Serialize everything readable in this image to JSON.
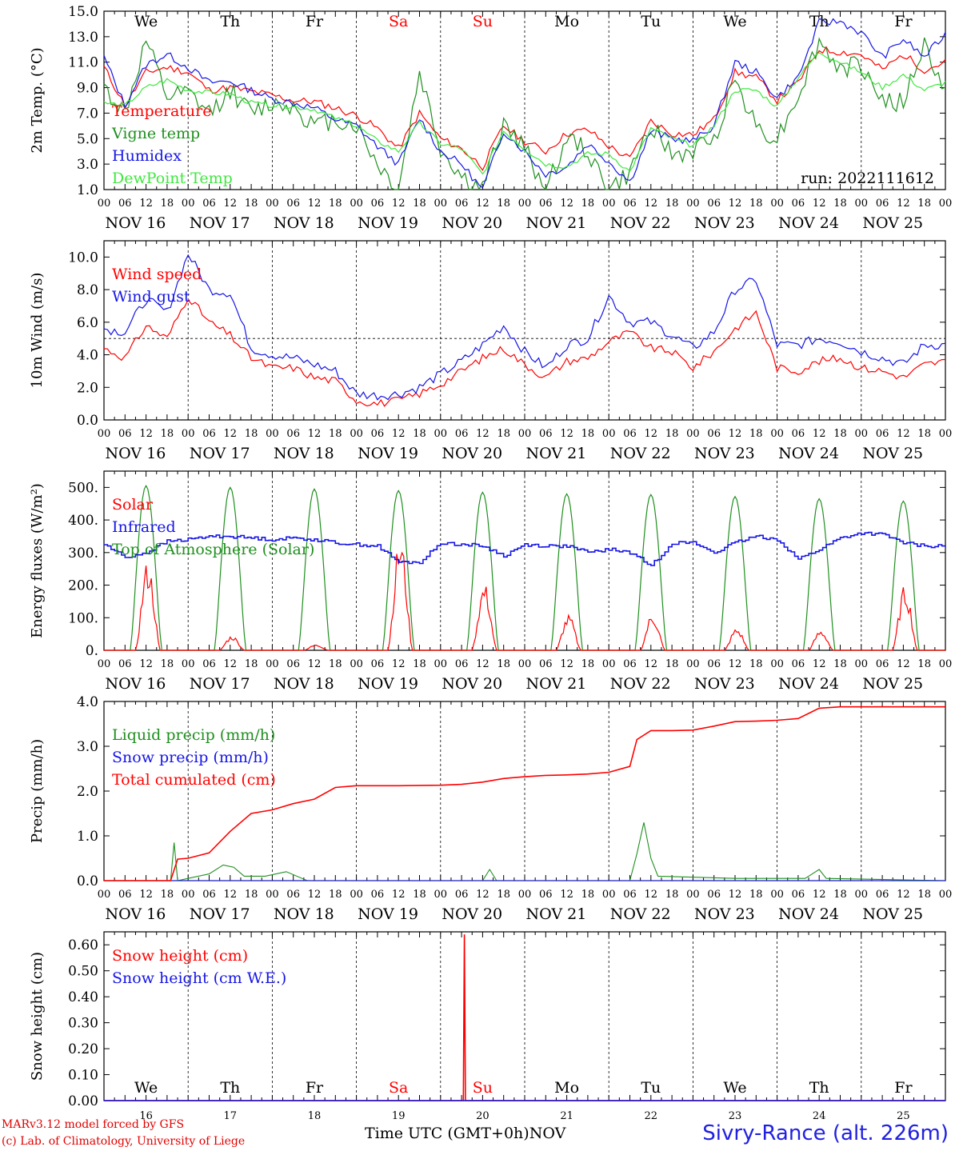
{
  "colors": {
    "red": "#ff0000",
    "darkgreen": "#1f8f1f",
    "blue": "#1515e6",
    "lightgreen": "#3fe83f",
    "weekend": "#ff0000"
  },
  "days": {
    "names": [
      "We",
      "Th",
      "Fr",
      "Sa",
      "Su",
      "Mo",
      "Tu",
      "We",
      "Th",
      "Fr"
    ],
    "weekend": [
      false,
      false,
      false,
      true,
      true,
      false,
      false,
      false,
      false,
      false
    ],
    "dates": [
      "NOV 16",
      "NOV 17",
      "NOV 18",
      "NOV 19",
      "NOV 20",
      "NOV 21",
      "NOV 22",
      "NOV 23",
      "NOV 24",
      "NOV 25"
    ],
    "nums": [
      "16",
      "17",
      "18",
      "19",
      "20",
      "21",
      "22",
      "23",
      "24",
      "25"
    ],
    "hour_ticks": [
      "00",
      "06",
      "12",
      "18"
    ],
    "end_tick": "00"
  },
  "footer": {
    "credit1": "MARv3.12 model forced by GFS",
    "credit2": "(c) Lab. of Climatology, University of Liege",
    "time_label": "Time UTC (GMT+0h)",
    "month": "NOV",
    "station": "Sivry-Rance (alt. 226m)"
  },
  "chart_data": [
    {
      "type": "line",
      "id": "temperature",
      "ylabel": "2m Temp. (°C)",
      "ylim": [
        1.0,
        15.0
      ],
      "yticks": [
        "1.0",
        "3.0",
        "5.0",
        "7.0",
        "9.0",
        "11.0",
        "13.0",
        "15.0"
      ],
      "annotation": "run: 2022111612",
      "x_unit": "hours since NOV 16 00 UTC",
      "series": [
        {
          "name": "Temperature",
          "color_key": "red",
          "x": [
            0,
            6,
            12,
            18,
            24,
            30,
            36,
            42,
            48,
            54,
            60,
            66,
            72,
            78,
            84,
            90,
            96,
            102,
            108,
            114,
            120,
            126,
            132,
            138,
            144,
            150,
            156,
            162,
            168,
            174,
            180,
            186,
            192,
            198,
            204,
            210,
            216,
            222,
            228,
            234,
            240
          ],
          "y": [
            10.6,
            7.6,
            10.2,
            10.6,
            10.2,
            8.8,
            9.0,
            8.7,
            8.4,
            8.0,
            7.9,
            7.4,
            6.8,
            5.8,
            4.2,
            7.0,
            5.0,
            4.2,
            2.8,
            6.0,
            4.8,
            4.0,
            5.4,
            5.7,
            4.4,
            3.4,
            6.4,
            5.4,
            5.3,
            6.5,
            10.2,
            9.8,
            8.0,
            9.4,
            12.0,
            11.8,
            11.6,
            10.4,
            11.6,
            10.4,
            11.0
          ]
        },
        {
          "name": "Vigne temp",
          "color_key": "darkgreen",
          "x": [
            0,
            6,
            12,
            18,
            24,
            30,
            36,
            42,
            48,
            54,
            60,
            66,
            72,
            78,
            84,
            90,
            96,
            102,
            108,
            114,
            120,
            126,
            132,
            138,
            144,
            150,
            156,
            162,
            168,
            174,
            180,
            186,
            192,
            198,
            204,
            210,
            216,
            222,
            228,
            234,
            240
          ],
          "y": [
            9.0,
            7.0,
            12.6,
            8.2,
            8.5,
            7.0,
            8.8,
            7.0,
            7.8,
            7.6,
            6.0,
            6.5,
            6.0,
            3.0,
            1.0,
            10.2,
            4.2,
            2.0,
            1.0,
            6.2,
            4.2,
            1.0,
            5.0,
            4.0,
            1.0,
            2.2,
            6.2,
            3.6,
            4.0,
            5.0,
            9.8,
            6.0,
            5.0,
            8.4,
            12.6,
            10.4,
            10.8,
            8.0,
            7.8,
            12.4,
            8.5
          ]
        },
        {
          "name": "Humidex",
          "color_key": "blue",
          "x": [
            0,
            6,
            12,
            18,
            24,
            30,
            36,
            42,
            48,
            54,
            60,
            66,
            72,
            78,
            84,
            90,
            96,
            102,
            108,
            114,
            120,
            126,
            132,
            138,
            144,
            150,
            156,
            162,
            168,
            174,
            180,
            186,
            192,
            198,
            204,
            210,
            216,
            222,
            228,
            234,
            240
          ],
          "y": [
            11.4,
            7.6,
            10.8,
            11.6,
            10.6,
            9.4,
            9.5,
            8.8,
            8.1,
            7.8,
            7.4,
            6.5,
            6.0,
            4.4,
            3.0,
            6.6,
            4.0,
            3.0,
            1.0,
            5.6,
            4.0,
            2.2,
            2.8,
            4.6,
            3.2,
            1.6,
            5.6,
            5.0,
            4.8,
            6.0,
            11.0,
            10.2,
            8.2,
            9.8,
            14.1,
            14.2,
            13.3,
            11.4,
            12.8,
            11.4,
            13.2
          ]
        },
        {
          "name": "DewPoint Temp",
          "color_key": "lightgreen",
          "x": [
            0,
            6,
            12,
            18,
            24,
            30,
            36,
            42,
            48,
            54,
            60,
            66,
            72,
            78,
            84,
            90,
            96,
            102,
            108,
            114,
            120,
            126,
            132,
            138,
            144,
            150,
            156,
            162,
            168,
            174,
            180,
            186,
            192,
            198,
            204,
            210,
            216,
            222,
            228,
            234,
            240
          ],
          "y": [
            7.8,
            7.6,
            9.0,
            9.6,
            8.8,
            8.6,
            8.5,
            7.8,
            7.6,
            7.5,
            7.3,
            6.6,
            6.0,
            4.8,
            4.0,
            6.2,
            4.6,
            4.2,
            2.2,
            5.6,
            4.2,
            3.0,
            2.8,
            3.8,
            3.8,
            2.4,
            5.8,
            5.0,
            4.4,
            6.0,
            8.8,
            8.8,
            7.5,
            9.8,
            11.8,
            11.0,
            10.2,
            9.0,
            10.0,
            8.8,
            9.4
          ]
        }
      ]
    },
    {
      "type": "line",
      "id": "wind",
      "ylabel": "10m Wind (m/s)",
      "ylim": [
        0.0,
        11.0
      ],
      "yticks": [
        "0.0",
        "2.0",
        "4.0",
        "6.0",
        "8.0",
        "10.0"
      ],
      "ref_line": 5.0,
      "x_unit": "hours since NOV 16 00 UTC",
      "series": [
        {
          "name": "Wind speed",
          "color_key": "red",
          "x": [
            0,
            6,
            12,
            18,
            24,
            30,
            36,
            42,
            48,
            54,
            60,
            66,
            72,
            78,
            84,
            90,
            96,
            102,
            108,
            114,
            120,
            126,
            132,
            138,
            144,
            150,
            156,
            162,
            168,
            174,
            180,
            186,
            192,
            198,
            204,
            210,
            216,
            222,
            228,
            234,
            240
          ],
          "y": [
            4.4,
            3.8,
            5.8,
            5.0,
            7.6,
            6.0,
            5.2,
            3.8,
            3.2,
            3.2,
            2.6,
            2.4,
            1.2,
            1.0,
            1.2,
            1.6,
            2.2,
            3.0,
            3.8,
            4.4,
            3.4,
            2.6,
            3.6,
            3.8,
            4.8,
            5.4,
            4.4,
            4.2,
            3.2,
            4.2,
            5.6,
            6.6,
            3.2,
            3.0,
            3.6,
            3.8,
            3.2,
            3.0,
            2.6,
            3.4,
            3.6
          ]
        },
        {
          "name": "Wind gust",
          "color_key": "blue",
          "x": [
            0,
            6,
            12,
            18,
            24,
            30,
            36,
            42,
            48,
            54,
            60,
            66,
            72,
            78,
            84,
            90,
            96,
            102,
            108,
            114,
            120,
            126,
            132,
            138,
            144,
            150,
            156,
            162,
            168,
            174,
            180,
            186,
            192,
            198,
            204,
            210,
            216,
            222,
            228,
            234,
            240
          ],
          "y": [
            5.6,
            5.4,
            7.4,
            6.6,
            10.2,
            8.0,
            7.8,
            4.4,
            4.0,
            3.8,
            3.4,
            3.0,
            1.6,
            1.5,
            1.6,
            2.0,
            2.8,
            3.6,
            4.6,
            5.8,
            4.2,
            3.2,
            4.6,
            5.0,
            7.6,
            6.0,
            6.0,
            5.2,
            4.4,
            5.4,
            8.0,
            8.6,
            4.6,
            4.6,
            5.0,
            4.8,
            4.2,
            3.8,
            3.4,
            4.6,
            4.6
          ]
        }
      ]
    },
    {
      "type": "line",
      "id": "energy",
      "ylabel": "Energy fluxes (W/m²)",
      "ylim": [
        0,
        550
      ],
      "yticks": [
        "0.",
        "100.",
        "200.",
        "300.",
        "400.",
        "500."
      ],
      "x_unit": "hours since NOV 16 00 UTC",
      "series": [
        {
          "name": "Solar",
          "color_key": "red",
          "day_peaks": [
            240,
            40,
            15,
            305,
            180,
            95,
            100,
            60,
            55,
            175
          ]
        },
        {
          "name": "Infrared",
          "color_key": "blue",
          "x": [
            0,
            6,
            12,
            18,
            24,
            30,
            36,
            42,
            48,
            54,
            60,
            66,
            72,
            78,
            84,
            90,
            96,
            102,
            108,
            114,
            120,
            126,
            132,
            138,
            144,
            150,
            156,
            162,
            168,
            174,
            180,
            186,
            192,
            198,
            204,
            210,
            216,
            222,
            228,
            234,
            240
          ],
          "y": [
            325,
            285,
            300,
            335,
            340,
            350,
            350,
            345,
            340,
            345,
            340,
            330,
            325,
            320,
            270,
            270,
            330,
            325,
            320,
            290,
            325,
            320,
            320,
            300,
            310,
            300,
            260,
            330,
            330,
            300,
            330,
            350,
            340,
            280,
            310,
            345,
            360,
            355,
            330,
            320,
            320
          ]
        },
        {
          "name": "Top of Atmosphere (Solar)",
          "color_key": "darkgreen",
          "day_peaks": [
            505,
            500,
            495,
            490,
            485,
            480,
            478,
            472,
            465,
            458
          ]
        }
      ]
    },
    {
      "type": "line",
      "id": "precip",
      "ylabel": "Precip (mm/h)",
      "ylim": [
        0.0,
        4.0
      ],
      "yticks": [
        "0.0",
        "1.0",
        "2.0",
        "3.0",
        "4.0"
      ],
      "x_unit": "hours since NOV 16 00 UTC",
      "series": [
        {
          "name": "Liquid precip (mm/h)",
          "color_key": "darkgreen",
          "x": [
            0,
            19,
            20,
            21,
            24,
            30,
            34,
            37,
            40,
            46,
            52,
            58,
            108,
            110,
            112,
            150,
            152,
            154,
            156,
            158,
            180,
            200,
            204,
            206,
            240
          ],
          "y": [
            0,
            0,
            0.85,
            0,
            0.05,
            0.15,
            0.35,
            0.3,
            0.1,
            0.1,
            0.2,
            0,
            0,
            0.25,
            0,
            0,
            0.6,
            1.3,
            0.5,
            0.1,
            0.05,
            0.05,
            0.25,
            0.05,
            0
          ]
        },
        {
          "name": "Snow precip (mm/h)",
          "color_key": "blue",
          "x": [
            0,
            240
          ],
          "y": [
            0,
            0
          ]
        },
        {
          "name": "Total cumulated (cm)",
          "color_key": "red",
          "x": [
            0,
            19,
            21,
            24,
            30,
            36,
            42,
            48,
            54,
            60,
            66,
            72,
            84,
            96,
            102,
            108,
            114,
            120,
            126,
            132,
            138,
            144,
            150,
            152,
            156,
            162,
            168,
            174,
            180,
            186,
            192,
            198,
            204,
            210,
            216,
            222,
            228,
            234,
            240
          ],
          "y": [
            0,
            0,
            0.48,
            0.5,
            0.62,
            1.1,
            1.5,
            1.58,
            1.72,
            1.82,
            2.08,
            2.12,
            2.12,
            2.13,
            2.15,
            2.2,
            2.28,
            2.32,
            2.35,
            2.36,
            2.38,
            2.42,
            2.55,
            3.15,
            3.35,
            3.35,
            3.36,
            3.45,
            3.55,
            3.56,
            3.58,
            3.62,
            3.85,
            3.88,
            3.88,
            3.88,
            3.88,
            3.88,
            3.88
          ]
        }
      ]
    },
    {
      "type": "line",
      "id": "snow",
      "ylabel": "Snow height (cm)",
      "ylim": [
        0.0,
        0.65
      ],
      "yticks": [
        "0.00",
        "0.10",
        "0.20",
        "0.30",
        "0.40",
        "0.50",
        "0.60"
      ],
      "x_unit": "hours since NOV 16 00 UTC",
      "series": [
        {
          "name": "Snow height (cm)",
          "color_key": "red",
          "x": [
            0,
            102.5,
            102.8,
            103.1,
            240
          ],
          "y": [
            0,
            0,
            0.64,
            0,
            0
          ]
        },
        {
          "name": "Snow height (cm W.E.)",
          "color_key": "blue",
          "x": [
            0,
            240
          ],
          "y": [
            0,
            0
          ]
        }
      ]
    }
  ]
}
